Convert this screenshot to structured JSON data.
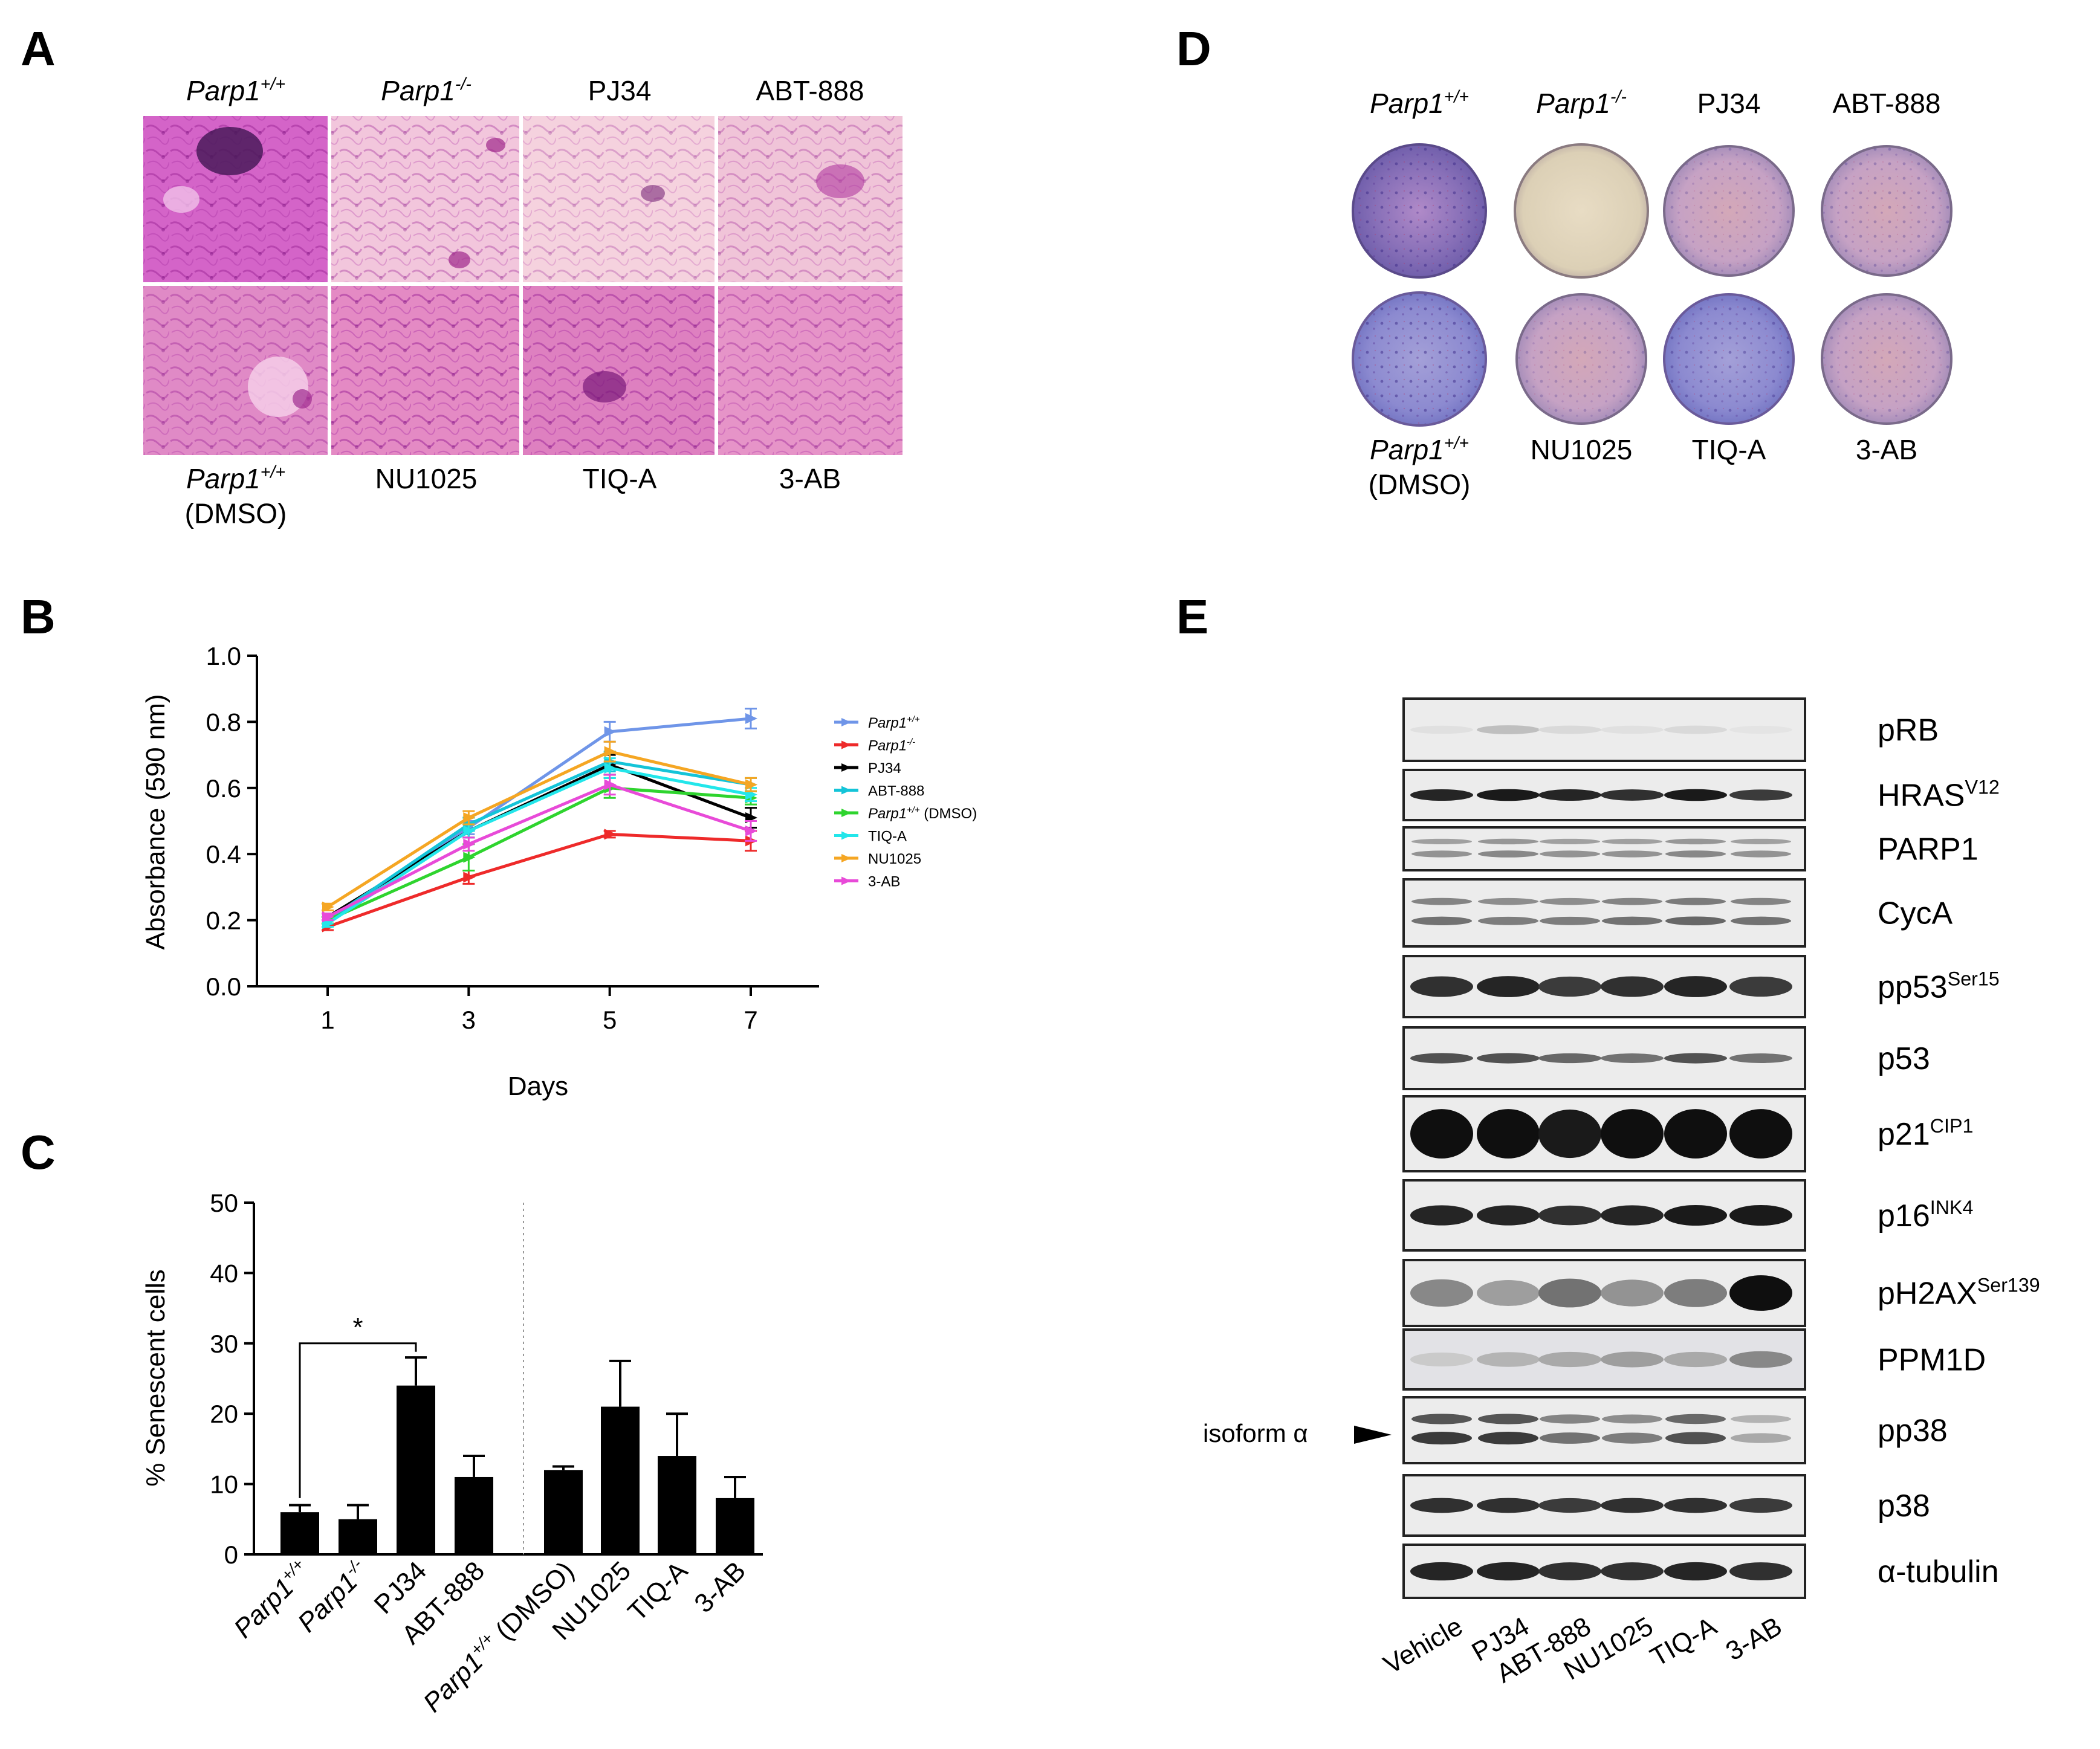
{
  "panels": {
    "a": {
      "letter": "A",
      "top_labels": [
        {
          "main": "Parp1",
          "sup": "+/+",
          "italic": true
        },
        {
          "main": "Parp1",
          "sup": "-/-",
          "italic": true
        },
        {
          "main": "PJ34",
          "sup": "",
          "italic": false
        },
        {
          "main": "ABT-888",
          "sup": "",
          "italic": false
        }
      ],
      "bottom_labels": [
        {
          "main": "Parp1",
          "sup": "+/+",
          "italic": true,
          "second": "(DMSO)"
        },
        {
          "main": "NU1025",
          "sup": "",
          "italic": false,
          "second": ""
        },
        {
          "main": "TIQ-A",
          "sup": "",
          "italic": false,
          "second": ""
        },
        {
          "main": "3-AB",
          "sup": "",
          "italic": false,
          "second": ""
        }
      ]
    },
    "d": {
      "letter": "D",
      "top_labels": [
        {
          "main": "Parp1",
          "sup": "+/+",
          "italic": true
        },
        {
          "main": "Parp1",
          "sup": "-/-",
          "italic": true
        },
        {
          "main": "PJ34",
          "sup": "",
          "italic": false
        },
        {
          "main": "ABT-888",
          "sup": "",
          "italic": false
        }
      ],
      "bottom_labels": [
        {
          "main": "Parp1",
          "sup": "+/+",
          "italic": true,
          "second": "(DMSO)"
        },
        {
          "main": "NU1025",
          "sup": "",
          "italic": false,
          "second": ""
        },
        {
          "main": "TIQ-A",
          "sup": "",
          "italic": false,
          "second": ""
        },
        {
          "main": "3-AB",
          "sup": "",
          "italic": false,
          "second": ""
        }
      ]
    },
    "e": {
      "letter": "E",
      "bands": [
        {
          "main": "pRB",
          "sup": ""
        },
        {
          "main": "HRAS",
          "sup": "V12"
        },
        {
          "main": "PARP1",
          "sup": ""
        },
        {
          "main": "CycA",
          "sup": ""
        },
        {
          "main": "pp53",
          "sup": "Ser15"
        },
        {
          "main": "p53",
          "sup": ""
        },
        {
          "main": "p21",
          "sup": "CIP1"
        },
        {
          "main": "p16",
          "sup": "INK4"
        },
        {
          "main": "pH2AX",
          "sup": "Ser139"
        },
        {
          "main": "PPM1D",
          "sup": ""
        },
        {
          "main": "pp38",
          "sup": ""
        },
        {
          "main": "p38",
          "sup": ""
        },
        {
          "main": "α-tubulin",
          "sup": ""
        }
      ],
      "isoform_label": "isoform α",
      "lanes": [
        "Vehicle",
        "PJ34",
        "ABT-888",
        "NU1025",
        "TIQ-A",
        "3-AB"
      ]
    }
  },
  "chart_data": [
    {
      "type": "line",
      "panel_letter": "B",
      "title": "",
      "xlabel": "Days",
      "ylabel": "Absorbance (590 nm)",
      "x": [
        1,
        3,
        5,
        7
      ],
      "xticks": [
        "1",
        "3",
        "5",
        "7"
      ],
      "ylim": [
        0.0,
        1.0
      ],
      "yticks": [
        "0.0",
        "0.2",
        "0.4",
        "0.6",
        "0.8",
        "1.0"
      ],
      "legend_position": "right",
      "series": [
        {
          "name": "Parp1",
          "sup": "+/+",
          "suffix": "",
          "color": "#6f95e8",
          "values": [
            0.2,
            0.48,
            0.77,
            0.81
          ],
          "errors": [
            0.01,
            0.02,
            0.03,
            0.03
          ]
        },
        {
          "name": "Parp1",
          "sup": "-/-",
          "suffix": "",
          "color": "#ee2a2a",
          "values": [
            0.18,
            0.33,
            0.46,
            0.44
          ],
          "errors": [
            0.01,
            0.02,
            0.01,
            0.03
          ]
        },
        {
          "name": "PJ34",
          "sup": "",
          "suffix": "",
          "color": "#000000",
          "values": [
            0.21,
            0.47,
            0.67,
            0.51
          ],
          "errors": [
            0.01,
            0.02,
            0.03,
            0.03
          ]
        },
        {
          "name": "ABT-888",
          "sup": "",
          "suffix": "",
          "color": "#14c4d8",
          "values": [
            0.2,
            0.49,
            0.68,
            0.61
          ],
          "errors": [
            0.01,
            0.02,
            0.03,
            0.02
          ]
        },
        {
          "name": "Parp1",
          "sup": "+/+",
          "suffix": " (DMSO)",
          "color": "#2ed42e",
          "values": [
            0.2,
            0.39,
            0.6,
            0.57
          ],
          "errors": [
            0.01,
            0.04,
            0.03,
            0.02
          ]
        },
        {
          "name": "TIQ-A",
          "sup": "",
          "suffix": "",
          "color": "#22e6ea",
          "values": [
            0.19,
            0.47,
            0.66,
            0.58
          ],
          "errors": [
            0.01,
            0.02,
            0.03,
            0.02
          ]
        },
        {
          "name": "NU1025",
          "sup": "",
          "suffix": "",
          "color": "#f5a623",
          "values": [
            0.24,
            0.51,
            0.71,
            0.61
          ],
          "errors": [
            0.01,
            0.02,
            0.03,
            0.02
          ]
        },
        {
          "name": "3-AB",
          "sup": "",
          "suffix": "",
          "color": "#e84ad8",
          "values": [
            0.21,
            0.43,
            0.61,
            0.47
          ],
          "errors": [
            0.01,
            0.02,
            0.03,
            0.03
          ]
        }
      ]
    },
    {
      "type": "bar",
      "panel_letter": "C",
      "title": "",
      "xlabel": "",
      "ylabel": "% Senescent cells",
      "ylim": [
        0,
        50
      ],
      "yticks": [
        "0",
        "10",
        "20",
        "30",
        "40",
        "50"
      ],
      "categories": [
        {
          "name": "Parp1",
          "sup": "+/+",
          "suffix": ""
        },
        {
          "name": "Parp1",
          "sup": "-/-",
          "suffix": ""
        },
        {
          "name": "PJ34",
          "sup": "",
          "suffix": ""
        },
        {
          "name": "ABT-888",
          "sup": "",
          "suffix": ""
        },
        {
          "name": "Parp1",
          "sup": "+/+",
          "suffix": " (DMSO)"
        },
        {
          "name": "NU1025",
          "sup": "",
          "suffix": ""
        },
        {
          "name": "TIQ-A",
          "sup": "",
          "suffix": ""
        },
        {
          "name": "3-AB",
          "sup": "",
          "suffix": ""
        }
      ],
      "values": [
        6,
        5,
        24,
        11,
        12,
        21,
        14,
        8
      ],
      "errors": [
        1,
        2,
        4,
        3,
        0.5,
        6.5,
        6,
        3
      ],
      "significance": {
        "from": 0,
        "to": 2,
        "label": "*"
      },
      "color": "#000000"
    }
  ]
}
